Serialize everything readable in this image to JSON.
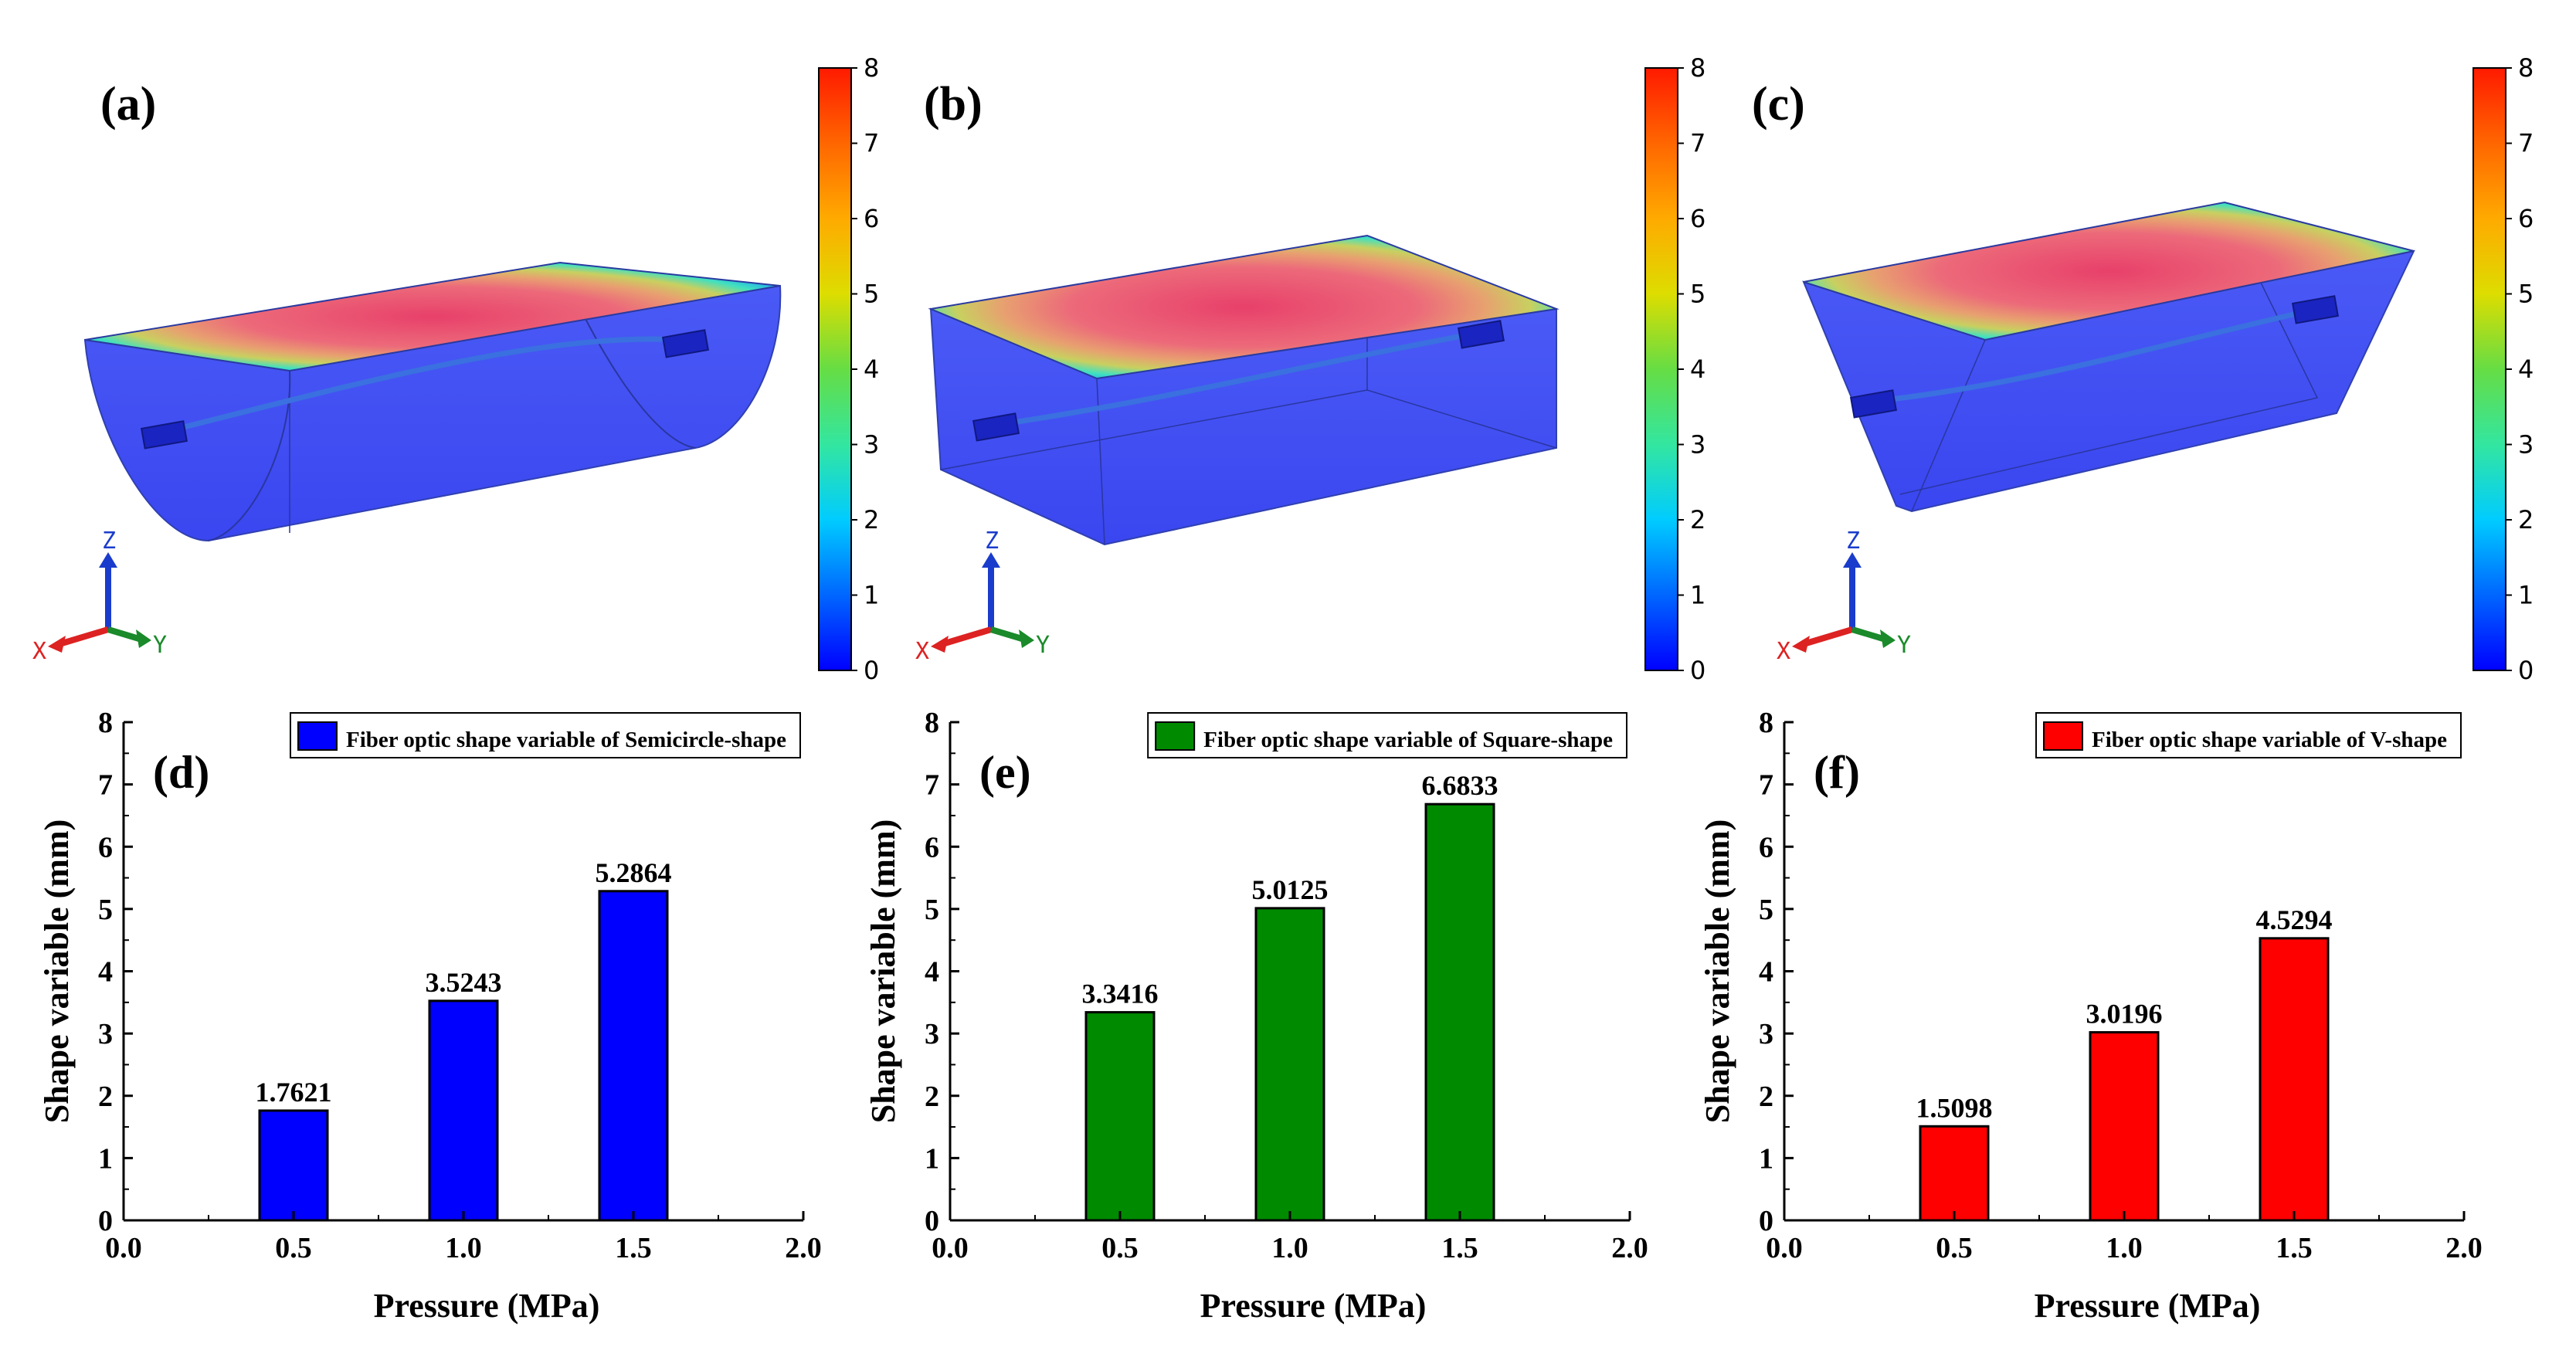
{
  "panels": {
    "a": {
      "label": "(a)",
      "shape": "semicircle"
    },
    "b": {
      "label": "(b)",
      "shape": "square"
    },
    "c": {
      "label": "(c)",
      "shape": "v-shape"
    }
  },
  "colorbar": {
    "ticks": [
      "0",
      "1",
      "2",
      "3",
      "4",
      "5",
      "6",
      "7",
      "8"
    ],
    "colors": [
      "#0000ff",
      "#0066ff",
      "#00ccff",
      "#33e6a0",
      "#66dd44",
      "#dddd00",
      "#ffaa00",
      "#ff6600",
      "#ff1a00"
    ]
  },
  "axes_triad": {
    "z": "Z",
    "x": "X",
    "y": "Y",
    "z_color": "#1a3ccc",
    "x_color": "#dd2222",
    "y_color": "#1a8a2a"
  },
  "chart_data": [
    {
      "type": "bar",
      "panel_label": "(d)",
      "x": [
        0.5,
        1.0,
        1.5
      ],
      "values": [
        1.7621,
        3.5243,
        5.2864
      ],
      "value_labels": [
        "1.7621",
        "3.5243",
        "5.2864"
      ],
      "series": [
        {
          "name": "Fiber optic shape variable of Semicircle-shape",
          "values": [
            1.7621,
            3.5243,
            5.2864
          ],
          "color": "#0000ff"
        }
      ],
      "xlabel": "Pressure (MPa)",
      "ylabel": "Shape variable (mm)",
      "xlim": [
        0.0,
        2.0
      ],
      "ylim": [
        0,
        8
      ],
      "xticks": [
        "0.0",
        "0.5",
        "1.0",
        "1.5",
        "2.0"
      ],
      "yticks": [
        "0",
        "1",
        "2",
        "3",
        "4",
        "5",
        "6",
        "7",
        "8"
      ],
      "legend": "top-right",
      "grid": false
    },
    {
      "type": "bar",
      "panel_label": "(e)",
      "x": [
        0.5,
        1.0,
        1.5
      ],
      "values": [
        3.3416,
        5.0125,
        6.6833
      ],
      "value_labels": [
        "3.3416",
        "5.0125",
        "6.6833"
      ],
      "series": [
        {
          "name": "Fiber optic shape variable of Square-shape",
          "values": [
            3.3416,
            5.0125,
            6.6833
          ],
          "color": "#008a00"
        }
      ],
      "xlabel": "Pressure (MPa)",
      "ylabel": "Shape variable (mm)",
      "xlim": [
        0.0,
        2.0
      ],
      "ylim": [
        0,
        8
      ],
      "xticks": [
        "0.0",
        "0.5",
        "1.0",
        "1.5",
        "2.0"
      ],
      "yticks": [
        "0",
        "1",
        "2",
        "3",
        "4",
        "5",
        "6",
        "7",
        "8"
      ],
      "legend": "top-right",
      "grid": false
    },
    {
      "type": "bar",
      "panel_label": "(f)",
      "x": [
        0.5,
        1.0,
        1.5
      ],
      "values": [
        1.5098,
        3.0196,
        4.5294
      ],
      "value_labels": [
        "1.5098",
        "3.0196",
        "4.5294"
      ],
      "series": [
        {
          "name": "Fiber optic shape variable of V-shape",
          "values": [
            1.5098,
            3.0196,
            4.5294
          ],
          "color": "#ff0000"
        }
      ],
      "xlabel": "Pressure (MPa)",
      "ylabel": "Shape variable (mm)",
      "xlim": [
        0.0,
        2.0
      ],
      "ylim": [
        0,
        8
      ],
      "xticks": [
        "0.0",
        "0.5",
        "1.0",
        "1.5",
        "2.0"
      ],
      "yticks": [
        "0",
        "1",
        "2",
        "3",
        "4",
        "5",
        "6",
        "7",
        "8"
      ],
      "legend": "top-right",
      "grid": false
    }
  ]
}
